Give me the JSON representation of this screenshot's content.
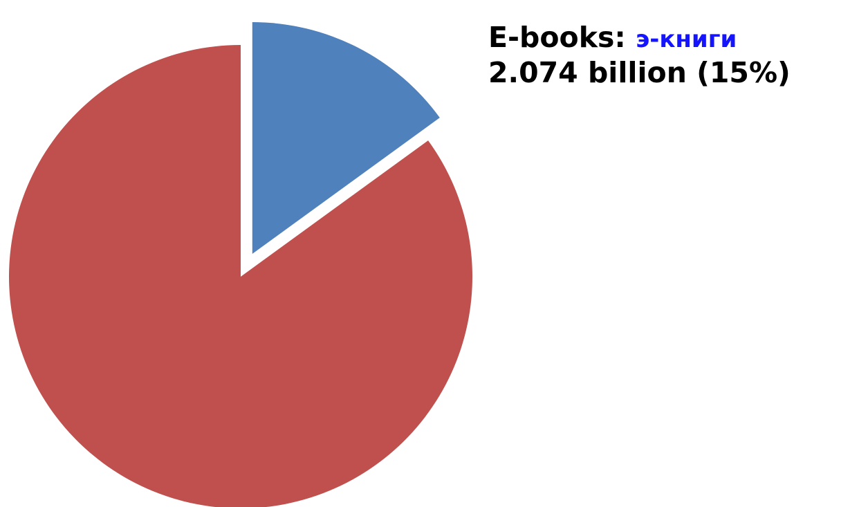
{
  "chart_data": {
    "type": "pie",
    "title": "",
    "slices": [
      {
        "label": "E-books",
        "label_translation": "э-книги",
        "value_text": "2.074 billion (15%)",
        "value_billion": 2.074,
        "percent": 15,
        "color": "#4f81bd",
        "exploded": true
      },
      {
        "label": "",
        "percent": 85,
        "color": "#c0504d",
        "exploded": false
      }
    ],
    "start_angle": "12 o'clock",
    "direction": "clockwise",
    "legend": "none"
  }
}
